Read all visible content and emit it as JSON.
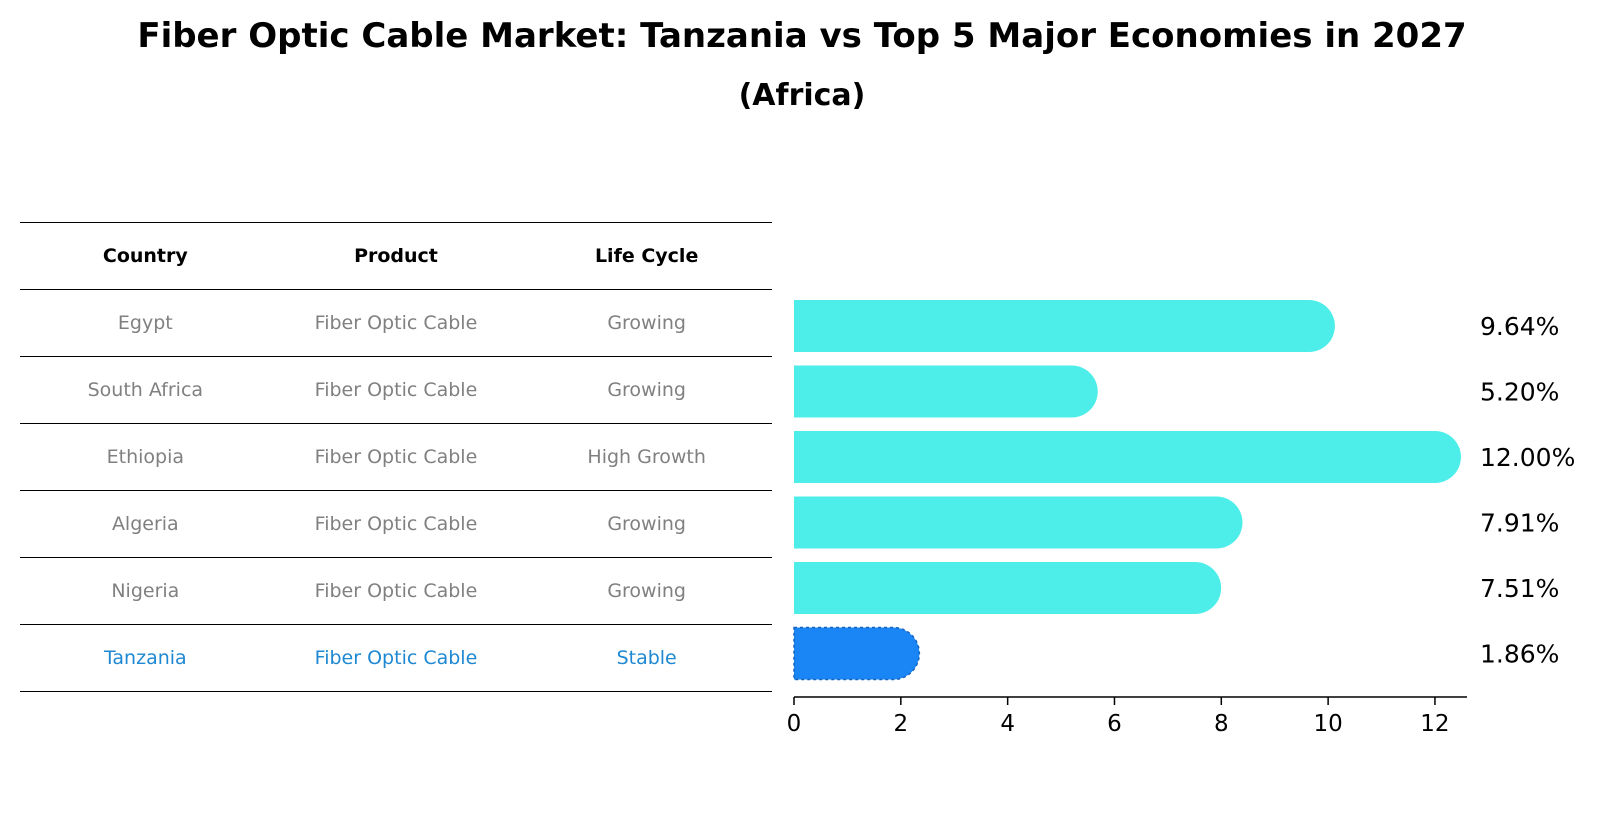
{
  "title": "Fiber Optic Cable Market: Tanzania vs Top 5 Major Economies in 2027",
  "subtitle": "(Africa)",
  "table": {
    "headers": [
      "Country",
      "Product",
      "Life Cycle"
    ],
    "rows": [
      {
        "country": "Egypt",
        "product": "Fiber Optic Cable",
        "life_cycle": "Growing"
      },
      {
        "country": "South Africa",
        "product": "Fiber Optic Cable",
        "life_cycle": "Growing"
      },
      {
        "country": "Ethiopia",
        "product": "Fiber Optic Cable",
        "life_cycle": "High Growth"
      },
      {
        "country": "Algeria",
        "product": "Fiber Optic Cable",
        "life_cycle": "Growing"
      },
      {
        "country": "Nigeria",
        "product": "Fiber Optic Cable",
        "life_cycle": "Growing"
      },
      {
        "country": "Tanzania",
        "product": "Fiber Optic Cable",
        "life_cycle": "Stable"
      }
    ],
    "highlight_row_index": 5
  },
  "chart_data": {
    "type": "bar",
    "orientation": "horizontal",
    "title": "Fiber Optic Cable Market: Tanzania vs Top 5 Major Economies in 2027",
    "subtitle": "(Africa)",
    "categories": [
      "Egypt",
      "South Africa",
      "Ethiopia",
      "Algeria",
      "Nigeria",
      "Tanzania"
    ],
    "values": [
      9.64,
      5.2,
      12.0,
      7.91,
      7.51,
      1.86
    ],
    "value_labels": [
      "9.64%",
      "5.20%",
      "12.00%",
      "7.91%",
      "7.51%",
      "1.86%"
    ],
    "xlim": [
      0,
      12.6
    ],
    "xticks": [
      0,
      2,
      4,
      6,
      8,
      10,
      12
    ],
    "xlabel": "",
    "ylabel": "",
    "grid": false,
    "colors": {
      "default": "#4deeea",
      "highlight": "#1a85f5"
    },
    "highlight_index": 5
  }
}
